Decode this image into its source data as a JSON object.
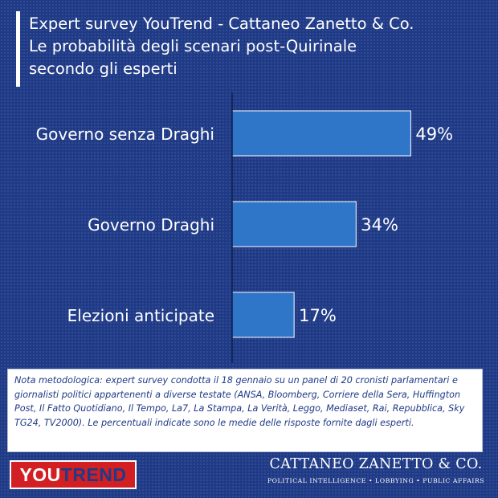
{
  "title_lines": [
    "Expert survey YouTrend - Cattaneo Zanetto & Co.",
    "Le probabilità degli scenari post-Quirinale",
    "secondo gli esperti"
  ],
  "chart_data": {
    "type": "bar",
    "orientation": "horizontal",
    "categories": [
      "Governo senza Draghi",
      "Governo Draghi",
      "Elezioni anticipate"
    ],
    "values": [
      49,
      34,
      17
    ],
    "value_labels": [
      "49%",
      "34%",
      "17%"
    ],
    "unit": "%",
    "xlim": [
      0,
      65
    ],
    "grid": false,
    "bar_color": "#2f75c8"
  },
  "note": {
    "text": "Nota metodologica: expert survey condotta il 18 gennaio su un panel di 20 cronisti parlamentari e giornalisti politici appartenenti a diverse testate (ANSA, Bloomberg, Corriere della Sera, Huffington Post, Il Fatto Quotidiano, Il Tempo, La7, La Stampa, La Verità, Leggo, Mediaset, Rai, Repubblica, Sky TG24, TV2000). Le percentuali indicate sono le medie delle risposte fornite dagli esperti."
  },
  "logos": {
    "youtrend_part1": "YOU",
    "youtrend_part2": "TREND",
    "cz_name": "CATTANEO ZANETTO & CO.",
    "cz_tagline": "POLITICAL INTELLIGENCE • LOBBYING • PUBLIC AFFAIRS"
  },
  "colors": {
    "background": "#1f3a86",
    "bar": "#2f75c8",
    "youtrend_red": "#d21f24"
  }
}
